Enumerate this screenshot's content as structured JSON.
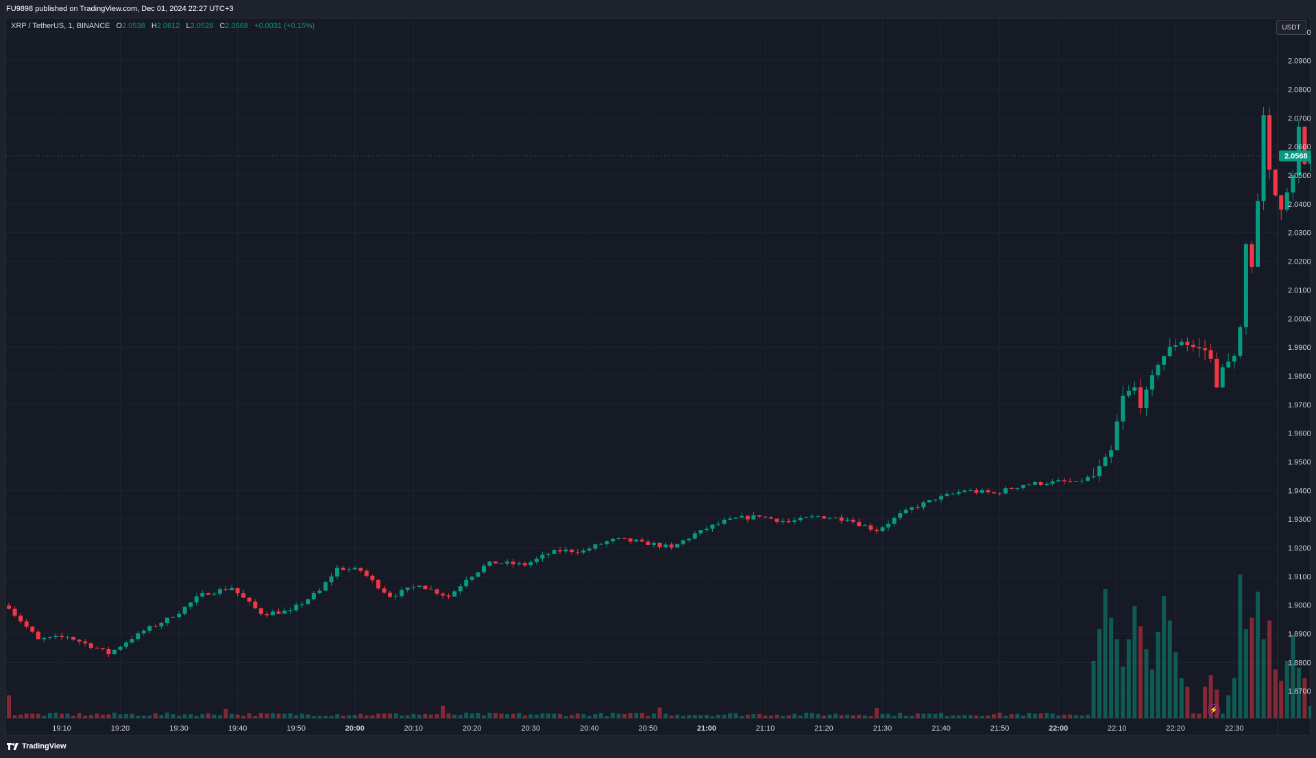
{
  "header": {
    "published": "FU9898 published on TradingView.com, Dec 01, 2024 22:27 UTC+3"
  },
  "legend": {
    "symbol": "XRP / TetherUS, 1, BINANCE",
    "o_label": "O",
    "o_value": "2.0538",
    "h_label": "H",
    "h_value": "2.0612",
    "l_label": "L",
    "l_value": "2.0528",
    "c_label": "C",
    "c_value": "2.0568",
    "change": "+0.0031 (+0.15%)"
  },
  "price_axis": {
    "unit_button": "USDT"
  },
  "footer": {
    "brand": "TradingView"
  },
  "colors": {
    "up": "#089981",
    "down": "#f23645",
    "background": "#161a25",
    "grid": "#1f2330",
    "text": "#d1d4dc"
  },
  "chart_data": {
    "type": "candlestick",
    "timeframe": "1 minute",
    "y_ticks": [
      "2.1000",
      "2.0900",
      "2.0800",
      "2.0700",
      "2.0600",
      "2.0500",
      "2.0400",
      "2.0300",
      "2.0200",
      "2.0100",
      "2.0000",
      "1.9900",
      "1.9800",
      "1.9700",
      "1.9600",
      "1.9500",
      "1.9400",
      "1.9300",
      "1.9200",
      "1.9100",
      "1.9000",
      "1.8900",
      "1.8800",
      "1.8700"
    ],
    "ylim": [
      1.8605,
      2.1045
    ],
    "x_ticks": [
      "19:10",
      "19:20",
      "19:30",
      "19:40",
      "19:50",
      "20:00",
      "20:10",
      "20:20",
      "20:30",
      "20:40",
      "20:50",
      "21:00",
      "21:10",
      "21:20",
      "21:30",
      "21:40",
      "21:50",
      "22:00",
      "22:10",
      "22:20",
      "22:30"
    ],
    "x_tick_start": "19:10",
    "first_candle": "19:01",
    "last_price": "2.0568",
    "anchors": [
      [
        0,
        1.899
      ],
      [
        5,
        1.888
      ],
      [
        10,
        1.889
      ],
      [
        15,
        1.885
      ],
      [
        17,
        1.883
      ],
      [
        22,
        1.89
      ],
      [
        28,
        1.896
      ],
      [
        33,
        1.904
      ],
      [
        38,
        1.906
      ],
      [
        43,
        1.897
      ],
      [
        48,
        1.898
      ],
      [
        53,
        1.905
      ],
      [
        56,
        1.913
      ],
      [
        60,
        1.912
      ],
      [
        65,
        1.903
      ],
      [
        70,
        1.907
      ],
      [
        75,
        1.903
      ],
      [
        78,
        1.909
      ],
      [
        82,
        1.915
      ],
      [
        88,
        1.914
      ],
      [
        93,
        1.919
      ],
      [
        98,
        1.919
      ],
      [
        103,
        1.923
      ],
      [
        108,
        1.922
      ],
      [
        113,
        1.92
      ],
      [
        118,
        1.926
      ],
      [
        123,
        1.93
      ],
      [
        128,
        1.931
      ],
      [
        133,
        1.929
      ],
      [
        138,
        1.931
      ],
      [
        143,
        1.93
      ],
      [
        148,
        1.926
      ],
      [
        153,
        1.933
      ],
      [
        158,
        1.937
      ],
      [
        163,
        1.94
      ],
      [
        168,
        1.939
      ],
      [
        173,
        1.942
      ],
      [
        178,
        1.943
      ],
      [
        182,
        1.943
      ],
      [
        185,
        1.945
      ],
      [
        188,
        1.954
      ],
      [
        189,
        1.964
      ],
      [
        190,
        1.973
      ],
      [
        192,
        1.976
      ],
      [
        193,
        1.969
      ],
      [
        194,
        1.975
      ],
      [
        196,
        1.984
      ],
      [
        198,
        1.99
      ],
      [
        200,
        1.992
      ],
      [
        202,
        1.99
      ],
      [
        204,
        1.989
      ],
      [
        205,
        1.986
      ],
      [
        206,
        1.976
      ],
      [
        207,
        1.983
      ],
      [
        209,
        1.987
      ],
      [
        210,
        1.997
      ],
      [
        211,
        2.026
      ],
      [
        212,
        2.018
      ],
      [
        213,
        2.041
      ],
      [
        214,
        2.071
      ],
      [
        215,
        2.052
      ],
      [
        216,
        2.043
      ],
      [
        217,
        2.038
      ],
      [
        218,
        2.044
      ],
      [
        219,
        2.05
      ],
      [
        220,
        2.067
      ],
      [
        221,
        2.054
      ],
      [
        222,
        2.057
      ]
    ],
    "volume_colors": "volume bars follow candle direction (up teal, down red)",
    "volume_spikes": [
      [
        185,
        0.4
      ],
      [
        186,
        0.62
      ],
      [
        187,
        0.9
      ],
      [
        188,
        0.7
      ],
      [
        189,
        0.55
      ],
      [
        190,
        0.36
      ],
      [
        191,
        0.55
      ],
      [
        192,
        0.78
      ],
      [
        193,
        0.64
      ],
      [
        194,
        0.48
      ],
      [
        195,
        0.34
      ],
      [
        196,
        0.6
      ],
      [
        197,
        0.85
      ],
      [
        198,
        0.68
      ],
      [
        199,
        0.46
      ],
      [
        200,
        0.28
      ],
      [
        201,
        0.22
      ],
      [
        204,
        0.22
      ],
      [
        205,
        0.3
      ],
      [
        206,
        0.2
      ],
      [
        208,
        0.16
      ],
      [
        209,
        0.28
      ],
      [
        210,
        1.0
      ],
      [
        211,
        0.62
      ],
      [
        212,
        0.7
      ],
      [
        213,
        0.88
      ],
      [
        214,
        0.55
      ],
      [
        215,
        0.68
      ],
      [
        216,
        0.34
      ],
      [
        217,
        0.26
      ],
      [
        218,
        0.4
      ],
      [
        219,
        0.58
      ],
      [
        220,
        0.35
      ],
      [
        221,
        0.28
      ]
    ]
  }
}
